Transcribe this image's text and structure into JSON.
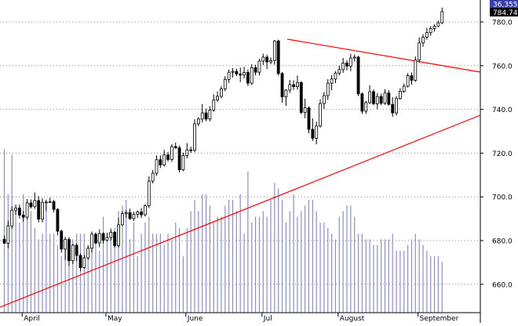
{
  "chart_data": {
    "type": "candlestick",
    "title": "",
    "xlabel": "",
    "ylabel": "",
    "ylim": [
      650,
      790
    ],
    "y_ticks": [
      660,
      680,
      700,
      720,
      740,
      760,
      780
    ],
    "y_tick_labels": [
      "660.0",
      "680.0",
      "700.0",
      "720.0",
      "740.0",
      "760.0",
      "780.0"
    ],
    "x_tick_labels": [
      "April",
      "May",
      "June",
      "Jul",
      "August",
      "September"
    ],
    "x_tick_index": [
      5,
      27,
      48,
      68,
      88,
      109
    ],
    "grid": true,
    "last_price_label": "784.74",
    "volume_label": "36,355",
    "colors": {
      "candle": "#000000",
      "volume": "#8a8fcf",
      "trendline": "#ff0000",
      "grid": "#888888",
      "price_box": "#000000",
      "volume_box": "#3b3fa8",
      "volume_ref_line": "#cc0000"
    },
    "candles": [
      {
        "o": 680.6,
        "h": 682.3,
        "l": 678.5,
        "c": 678.8
      },
      {
        "o": 678.8,
        "h": 689.1,
        "l": 676.4,
        "c": 686.7
      },
      {
        "o": 686.7,
        "h": 695.6,
        "l": 685.4,
        "c": 693.9
      },
      {
        "o": 693.9,
        "h": 696.5,
        "l": 691.9,
        "c": 694.9
      },
      {
        "o": 694.9,
        "h": 696.5,
        "l": 690.1,
        "c": 691.6
      },
      {
        "o": 691.6,
        "h": 693.6,
        "l": 688.6,
        "c": 690.7
      },
      {
        "o": 690.7,
        "h": 699.0,
        "l": 689.6,
        "c": 697.2
      },
      {
        "o": 697.2,
        "h": 698.8,
        "l": 694.7,
        "c": 695.5
      },
      {
        "o": 695.5,
        "h": 702.0,
        "l": 694.5,
        "c": 698.3
      },
      {
        "o": 698.3,
        "h": 700.3,
        "l": 688.3,
        "c": 689.8
      },
      {
        "o": 689.8,
        "h": 699.3,
        "l": 688.3,
        "c": 697.5
      },
      {
        "o": 697.5,
        "h": 698.7,
        "l": 693.5,
        "c": 697.6
      },
      {
        "o": 697.6,
        "h": 699.6,
        "l": 697.3,
        "c": 697.8
      },
      {
        "o": 697.8,
        "h": 698.6,
        "l": 692.9,
        "c": 694.3
      },
      {
        "o": 694.3,
        "h": 694.8,
        "l": 682.4,
        "c": 684.3
      },
      {
        "o": 684.3,
        "h": 685.0,
        "l": 674.4,
        "c": 676.1
      },
      {
        "o": 676.1,
        "h": 681.7,
        "l": 671.2,
        "c": 680.5
      },
      {
        "o": 680.5,
        "h": 681.6,
        "l": 668.4,
        "c": 670.8
      },
      {
        "o": 670.8,
        "h": 678.5,
        "l": 669.3,
        "c": 677.9
      },
      {
        "o": 677.9,
        "h": 678.8,
        "l": 670.6,
        "c": 673.2
      },
      {
        "o": 673.2,
        "h": 674.1,
        "l": 666.0,
        "c": 667.6
      },
      {
        "o": 667.6,
        "h": 673.4,
        "l": 667.1,
        "c": 672.1
      },
      {
        "o": 672.1,
        "h": 677.8,
        "l": 671.2,
        "c": 676.5
      },
      {
        "o": 676.5,
        "h": 684.1,
        "l": 674.5,
        "c": 682.9
      },
      {
        "o": 682.9,
        "h": 683.7,
        "l": 678.3,
        "c": 678.9
      },
      {
        "o": 678.9,
        "h": 685.1,
        "l": 676.9,
        "c": 683.2
      },
      {
        "o": 683.2,
        "h": 683.8,
        "l": 678.6,
        "c": 680.2
      },
      {
        "o": 680.2,
        "h": 683.6,
        "l": 679.6,
        "c": 681.4
      },
      {
        "o": 681.4,
        "h": 685.1,
        "l": 680.1,
        "c": 683.8
      },
      {
        "o": 683.8,
        "h": 684.4,
        "l": 676.7,
        "c": 677.7
      },
      {
        "o": 677.7,
        "h": 690.5,
        "l": 676.7,
        "c": 687.2
      },
      {
        "o": 687.2,
        "h": 693.5,
        "l": 686.8,
        "c": 692.3
      },
      {
        "o": 692.3,
        "h": 693.9,
        "l": 690.4,
        "c": 692.8
      },
      {
        "o": 692.8,
        "h": 694.6,
        "l": 689.4,
        "c": 690.1
      },
      {
        "o": 690.1,
        "h": 693.2,
        "l": 688.9,
        "c": 692.0
      },
      {
        "o": 692.0,
        "h": 693.8,
        "l": 690.4,
        "c": 693.1
      },
      {
        "o": 693.1,
        "h": 694.9,
        "l": 690.3,
        "c": 691.8
      },
      {
        "o": 691.8,
        "h": 696.6,
        "l": 691.0,
        "c": 695.9
      },
      {
        "o": 695.9,
        "h": 709.4,
        "l": 694.9,
        "c": 707.2
      },
      {
        "o": 707.2,
        "h": 712.3,
        "l": 706.2,
        "c": 710.8
      },
      {
        "o": 710.8,
        "h": 719.0,
        "l": 709.6,
        "c": 717.0
      },
      {
        "o": 717.0,
        "h": 718.9,
        "l": 713.2,
        "c": 714.6
      },
      {
        "o": 714.6,
        "h": 721.5,
        "l": 713.9,
        "c": 719.2
      },
      {
        "o": 719.2,
        "h": 720.5,
        "l": 716.1,
        "c": 717.1
      },
      {
        "o": 717.1,
        "h": 724.1,
        "l": 716.0,
        "c": 723.0
      },
      {
        "o": 723.0,
        "h": 724.8,
        "l": 722.0,
        "c": 722.4
      },
      {
        "o": 722.4,
        "h": 723.5,
        "l": 711.2,
        "c": 712.4
      },
      {
        "o": 712.4,
        "h": 720.2,
        "l": 711.7,
        "c": 718.9
      },
      {
        "o": 718.9,
        "h": 724.6,
        "l": 717.6,
        "c": 721.5
      },
      {
        "o": 721.5,
        "h": 723.0,
        "l": 720.1,
        "c": 721.3
      },
      {
        "o": 721.3,
        "h": 735.5,
        "l": 720.4,
        "c": 733.4
      },
      {
        "o": 733.4,
        "h": 736.5,
        "l": 732.3,
        "c": 735.6
      },
      {
        "o": 735.6,
        "h": 742.4,
        "l": 734.0,
        "c": 738.4
      },
      {
        "o": 738.4,
        "h": 740.4,
        "l": 734.6,
        "c": 735.6
      },
      {
        "o": 735.6,
        "h": 741.5,
        "l": 734.5,
        "c": 739.7
      },
      {
        "o": 739.7,
        "h": 746.9,
        "l": 738.9,
        "c": 744.3
      },
      {
        "o": 744.3,
        "h": 748.2,
        "l": 743.4,
        "c": 746.0
      },
      {
        "o": 746.0,
        "h": 750.7,
        "l": 745.1,
        "c": 749.4
      },
      {
        "o": 749.4,
        "h": 755.2,
        "l": 748.3,
        "c": 753.7
      },
      {
        "o": 753.7,
        "h": 758.2,
        "l": 752.1,
        "c": 757.0
      },
      {
        "o": 757.0,
        "h": 758.9,
        "l": 754.6,
        "c": 757.4
      },
      {
        "o": 757.4,
        "h": 758.6,
        "l": 755.2,
        "c": 756.2
      },
      {
        "o": 756.2,
        "h": 759.1,
        "l": 752.5,
        "c": 755.7
      },
      {
        "o": 755.7,
        "h": 759.4,
        "l": 754.2,
        "c": 756.9
      },
      {
        "o": 756.9,
        "h": 758.3,
        "l": 750.7,
        "c": 752.0
      },
      {
        "o": 752.0,
        "h": 760.7,
        "l": 751.1,
        "c": 759.1
      },
      {
        "o": 759.1,
        "h": 760.4,
        "l": 755.6,
        "c": 757.0
      },
      {
        "o": 757.0,
        "h": 763.1,
        "l": 755.5,
        "c": 762.1
      },
      {
        "o": 762.1,
        "h": 765.5,
        "l": 760.3,
        "c": 763.9
      },
      {
        "o": 763.9,
        "h": 765.0,
        "l": 758.4,
        "c": 761.7
      },
      {
        "o": 761.7,
        "h": 763.8,
        "l": 760.7,
        "c": 762.4
      },
      {
        "o": 762.4,
        "h": 771.7,
        "l": 760.4,
        "c": 771.3
      },
      {
        "o": 771.3,
        "h": 771.9,
        "l": 755.5,
        "c": 756.4
      },
      {
        "o": 756.4,
        "h": 757.1,
        "l": 743.1,
        "c": 745.7
      },
      {
        "o": 745.7,
        "h": 749.2,
        "l": 741.6,
        "c": 748.8
      },
      {
        "o": 748.8,
        "h": 753.5,
        "l": 747.5,
        "c": 751.3
      },
      {
        "o": 751.3,
        "h": 753.3,
        "l": 748.9,
        "c": 750.4
      },
      {
        "o": 750.4,
        "h": 755.5,
        "l": 749.0,
        "c": 752.3
      },
      {
        "o": 752.3,
        "h": 752.9,
        "l": 737.8,
        "c": 738.6
      },
      {
        "o": 738.6,
        "h": 744.9,
        "l": 736.0,
        "c": 740.7
      },
      {
        "o": 740.7,
        "h": 741.3,
        "l": 729.0,
        "c": 730.9
      },
      {
        "o": 730.9,
        "h": 735.9,
        "l": 725.6,
        "c": 726.8
      },
      {
        "o": 726.8,
        "h": 734.4,
        "l": 724.0,
        "c": 732.4
      },
      {
        "o": 732.4,
        "h": 744.6,
        "l": 731.7,
        "c": 742.7
      },
      {
        "o": 742.7,
        "h": 748.0,
        "l": 740.2,
        "c": 746.3
      },
      {
        "o": 746.3,
        "h": 753.8,
        "l": 744.3,
        "c": 752.0
      },
      {
        "o": 752.0,
        "h": 755.7,
        "l": 748.8,
        "c": 753.9
      },
      {
        "o": 753.9,
        "h": 757.5,
        "l": 752.0,
        "c": 756.6
      },
      {
        "o": 756.6,
        "h": 760.1,
        "l": 755.5,
        "c": 758.2
      },
      {
        "o": 758.2,
        "h": 763.5,
        "l": 756.7,
        "c": 761.2
      },
      {
        "o": 761.2,
        "h": 762.5,
        "l": 757.9,
        "c": 759.8
      },
      {
        "o": 759.8,
        "h": 765.4,
        "l": 757.5,
        "c": 763.5
      },
      {
        "o": 763.5,
        "h": 765.1,
        "l": 761.9,
        "c": 763.9
      },
      {
        "o": 763.9,
        "h": 764.5,
        "l": 746.1,
        "c": 747.1
      },
      {
        "o": 747.1,
        "h": 747.8,
        "l": 738.0,
        "c": 739.2
      },
      {
        "o": 739.2,
        "h": 744.0,
        "l": 737.9,
        "c": 743.1
      },
      {
        "o": 743.1,
        "h": 751.1,
        "l": 742.4,
        "c": 748.1
      },
      {
        "o": 748.1,
        "h": 749.1,
        "l": 742.0,
        "c": 742.6
      },
      {
        "o": 742.6,
        "h": 747.5,
        "l": 740.1,
        "c": 745.9
      },
      {
        "o": 745.9,
        "h": 747.2,
        "l": 741.9,
        "c": 742.8
      },
      {
        "o": 742.8,
        "h": 749.2,
        "l": 742.1,
        "c": 747.5
      },
      {
        "o": 747.5,
        "h": 748.8,
        "l": 741.7,
        "c": 742.3
      },
      {
        "o": 742.3,
        "h": 745.6,
        "l": 736.6,
        "c": 738.4
      },
      {
        "o": 738.4,
        "h": 746.1,
        "l": 737.2,
        "c": 745.0
      },
      {
        "o": 745.0,
        "h": 749.7,
        "l": 744.4,
        "c": 748.3
      },
      {
        "o": 748.3,
        "h": 751.8,
        "l": 747.6,
        "c": 750.6
      },
      {
        "o": 750.6,
        "h": 756.6,
        "l": 750.0,
        "c": 755.4
      },
      {
        "o": 755.4,
        "h": 756.9,
        "l": 751.3,
        "c": 753.3
      },
      {
        "o": 753.3,
        "h": 764.2,
        "l": 752.6,
        "c": 762.6
      },
      {
        "o": 762.6,
        "h": 773.0,
        "l": 761.3,
        "c": 770.4
      },
      {
        "o": 770.4,
        "h": 774.4,
        "l": 768.6,
        "c": 773.0
      },
      {
        "o": 773.0,
        "h": 777.3,
        "l": 771.9,
        "c": 775.1
      },
      {
        "o": 775.1,
        "h": 778.1,
        "l": 773.7,
        "c": 777.0
      },
      {
        "o": 777.0,
        "h": 778.9,
        "l": 775.6,
        "c": 778.1
      },
      {
        "o": 778.1,
        "h": 780.6,
        "l": 777.6,
        "c": 779.6
      },
      {
        "o": 779.6,
        "h": 786.6,
        "l": 779.0,
        "c": 784.7
      }
    ],
    "volumes": [
      29.0,
      21.0,
      28.0,
      18.0,
      16.0,
      21.0,
      19.0,
      18.0,
      15.0,
      13.0,
      14.0,
      19.0,
      14.0,
      14.0,
      12.0,
      10.0,
      11.0,
      10.0,
      13.0,
      14.0,
      14.0,
      14.0,
      12.0,
      14.0,
      13.0,
      11.0,
      17.0,
      13.0,
      15.0,
      15.0,
      18.0,
      19.0,
      20.0,
      13.0,
      16.0,
      10.0,
      14.0,
      16.0,
      17.0,
      14.0,
      14.0,
      14.0,
      12.0,
      14.0,
      13.0,
      16.0,
      15.0,
      10.0,
      15.0,
      18.0,
      20.0,
      18.0,
      21.0,
      21.0,
      19.0,
      16.0,
      17.0,
      17.0,
      19.0,
      20.0,
      20.0,
      18.0,
      21.0,
      14.0,
      25.0,
      16.0,
      17.0,
      17.0,
      18.0,
      17.0,
      20.0,
      23.0,
      22.0,
      20.0,
      16.0,
      18.0,
      21.0,
      17.0,
      18.0,
      19.0,
      20.0,
      20.0,
      18.0,
      16.0,
      16.0,
      15.0,
      14.0,
      13.0,
      17.0,
      18.0,
      19.0,
      19.0,
      17.0,
      14.0,
      14.0,
      13.0,
      13.0,
      12.0,
      12.0,
      13.0,
      13.0,
      13.0,
      14.0,
      11.0,
      11.0,
      11.0,
      12.0,
      13.0,
      14.0,
      13.0,
      12.0,
      11.0,
      10.0,
      10.0,
      10.0,
      9.0
    ]
  }
}
